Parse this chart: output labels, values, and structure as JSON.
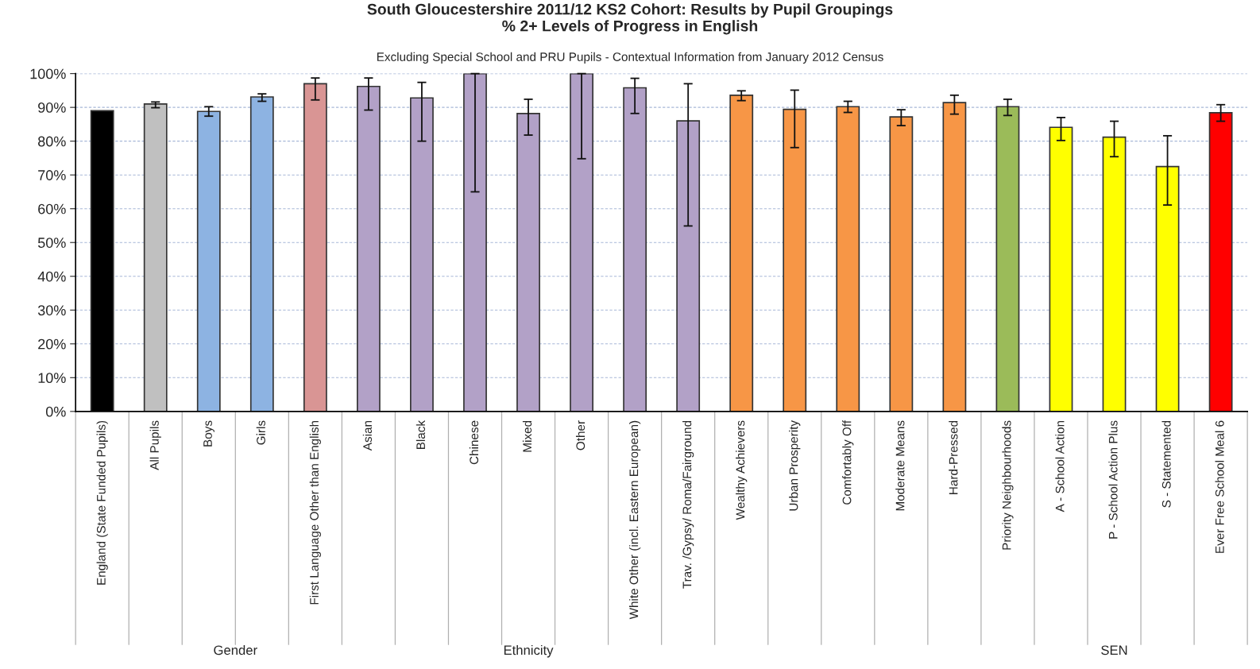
{
  "chart_data": {
    "type": "bar",
    "title": "South Gloucestershire 2011/12 KS2 Cohort: Results by Pupil Groupings\n% 2+ Levels of Progress in English",
    "subtitle": "Excluding Special School and PRU Pupils - Contextual Information from January 2012 Census",
    "categories": [
      "England (State Funded Pupils)",
      "All Pupils",
      "Boys",
      "Girls",
      "First Language Other than English",
      "Asian",
      "Black",
      "Chinese",
      "Mixed",
      "Other",
      "White Other (incl. Eastern European)",
      "Trav. /Gypsy/ Roma/Fairground",
      "Wealthy Achievers",
      "Urban Prosperity",
      "Comfortably Off",
      "Moderate Means",
      "Hard-Pressed",
      "Priority Neighbourhoods",
      "A - School Action",
      "P - School Action Plus",
      "S - Statemented",
      "Ever Free School Meal 6"
    ],
    "values": [
      89.0,
      91.0,
      88.8,
      93.1,
      97.0,
      96.2,
      92.8,
      100,
      88.2,
      100,
      95.8,
      86.0,
      93.6,
      89.4,
      90.2,
      87.2,
      91.4,
      90.2,
      84.1,
      81.2,
      72.5,
      88.4
    ],
    "errors": [
      null,
      [
        89.9,
        91.6
      ],
      [
        87.4,
        90.2
      ],
      [
        91.8,
        94.0
      ],
      [
        92.2,
        98.7
      ],
      [
        89.2,
        98.7
      ],
      [
        80.0,
        97.4
      ],
      [
        65.0,
        100
      ],
      [
        81.8,
        92.4
      ],
      [
        74.8,
        100
      ],
      [
        88.2,
        98.6
      ],
      [
        54.9,
        97.0
      ],
      [
        92.0,
        94.9
      ],
      [
        78.1,
        95.1
      ],
      [
        88.5,
        91.8
      ],
      [
        84.6,
        89.3
      ],
      [
        88.0,
        93.6
      ],
      [
        87.6,
        92.4
      ],
      [
        80.2,
        87.0
      ],
      [
        75.4,
        85.9
      ],
      [
        61.1,
        81.6
      ],
      [
        85.9,
        90.8
      ]
    ],
    "colors": [
      "#000000",
      "#c0c0c0",
      "#8db3e2",
      "#8db3e2",
      "#d99594",
      "#b2a1c7",
      "#b2a1c7",
      "#b2a1c7",
      "#b2a1c7",
      "#b2a1c7",
      "#b2a1c7",
      "#b2a1c7",
      "#f79646",
      "#f79646",
      "#f79646",
      "#f79646",
      "#f79646",
      "#9bbb59",
      "#ffff00",
      "#ffff00",
      "#ffff00",
      "#ff0000"
    ],
    "ylim": [
      0,
      100
    ],
    "yticks": [
      {
        "value": 0,
        "label": "0%"
      },
      {
        "value": 10,
        "label": "10%"
      },
      {
        "value": 20,
        "label": "20%"
      },
      {
        "value": 30,
        "label": "30%"
      },
      {
        "value": 40,
        "label": "40%"
      },
      {
        "value": 50,
        "label": "50%"
      },
      {
        "value": 60,
        "label": "60%"
      },
      {
        "value": 70,
        "label": "70%"
      },
      {
        "value": 80,
        "label": "80%"
      },
      {
        "value": 90,
        "label": "90%"
      },
      {
        "value": 100,
        "label": "100%"
      }
    ],
    "grid": "y",
    "annotations": [
      "Gender",
      "Ethnicity",
      "SEN"
    ]
  }
}
